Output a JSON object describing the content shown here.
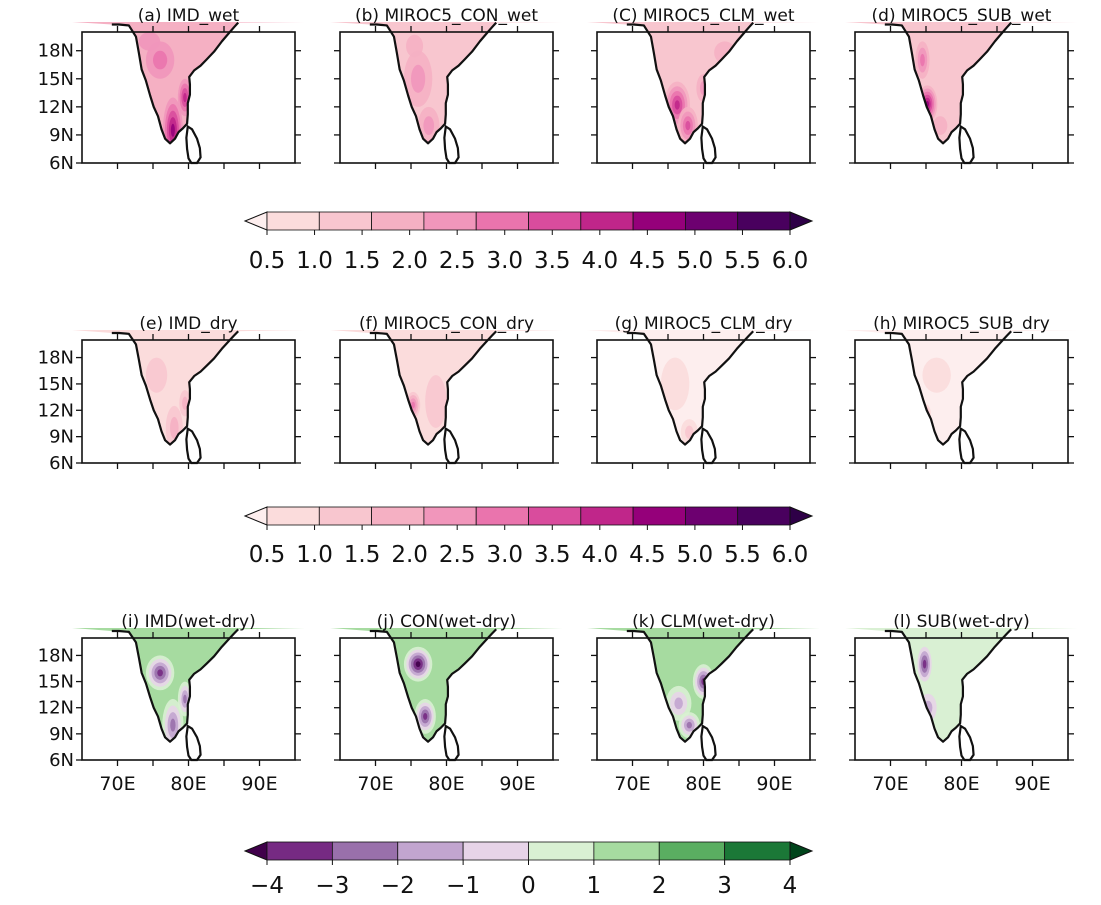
{
  "colors": {
    "sea": "#ffffff",
    "coast": "#111111",
    "sequential": [
      "#fdeeee",
      "#fbdcdc",
      "#f8c6cf",
      "#f5b0c3",
      "#f196bb",
      "#ea74ad",
      "#d94c9d",
      "#c0268a",
      "#95007a",
      "#6d0070",
      "#49005e",
      "#2e0047"
    ],
    "diverging": [
      "#40004b",
      "#762a83",
      "#9970ab",
      "#c2a5cf",
      "#e7d4e8",
      "#d9f0d3",
      "#a6dba0",
      "#5aae61",
      "#1b7837",
      "#00441b"
    ]
  },
  "lat_ticks": [
    "18N",
    "15N",
    "12N",
    "9N",
    "6N"
  ],
  "lon_ticks": [
    "70E",
    "80E",
    "90E"
  ],
  "rows": [
    {
      "panels": [
        {
          "title": "(a) IMD_wet",
          "pattern": "imd_wet"
        },
        {
          "title": "(b) MIROC5_CON_wet",
          "pattern": "con_wet"
        },
        {
          "title": "(C) MIROC5_CLM_wet",
          "pattern": "clm_wet"
        },
        {
          "title": "(d) MIROC5_SUB_wet",
          "pattern": "sub_wet"
        }
      ],
      "colorbar": {
        "palette": "sequential",
        "labels": [
          "0.5",
          "1.0",
          "1.5",
          "2.0",
          "2.5",
          "3.0",
          "3.5",
          "4.0",
          "4.5",
          "5.0",
          "5.5",
          "6.0"
        ]
      }
    },
    {
      "panels": [
        {
          "title": "(e) IMD_dry",
          "pattern": "imd_dry"
        },
        {
          "title": "(f) MIROC5_CON_dry",
          "pattern": "con_dry"
        },
        {
          "title": "(g) MIROC5_CLM_dry",
          "pattern": "clm_dry"
        },
        {
          "title": "(h) MIROC5_SUB_dry",
          "pattern": "sub_dry"
        }
      ],
      "colorbar": {
        "palette": "sequential",
        "labels": [
          "0.5",
          "1.0",
          "1.5",
          "2.0",
          "2.5",
          "3.0",
          "3.5",
          "4.0",
          "4.5",
          "5.0",
          "5.5",
          "6.0"
        ]
      }
    },
    {
      "panels": [
        {
          "title": "(i) IMD(wet-dry)",
          "pattern": "imd_diff"
        },
        {
          "title": "(j) CON(wet-dry)",
          "pattern": "con_diff"
        },
        {
          "title": "(k) CLM(wet-dry)",
          "pattern": "clm_diff"
        },
        {
          "title": "(l) SUB(wet-dry)",
          "pattern": "sub_diff"
        }
      ],
      "colorbar": {
        "palette": "diverging",
        "labels": [
          "−4",
          "−3",
          "−2",
          "−1",
          "0",
          "1",
          "2",
          "3",
          "4"
        ]
      }
    }
  ]
}
